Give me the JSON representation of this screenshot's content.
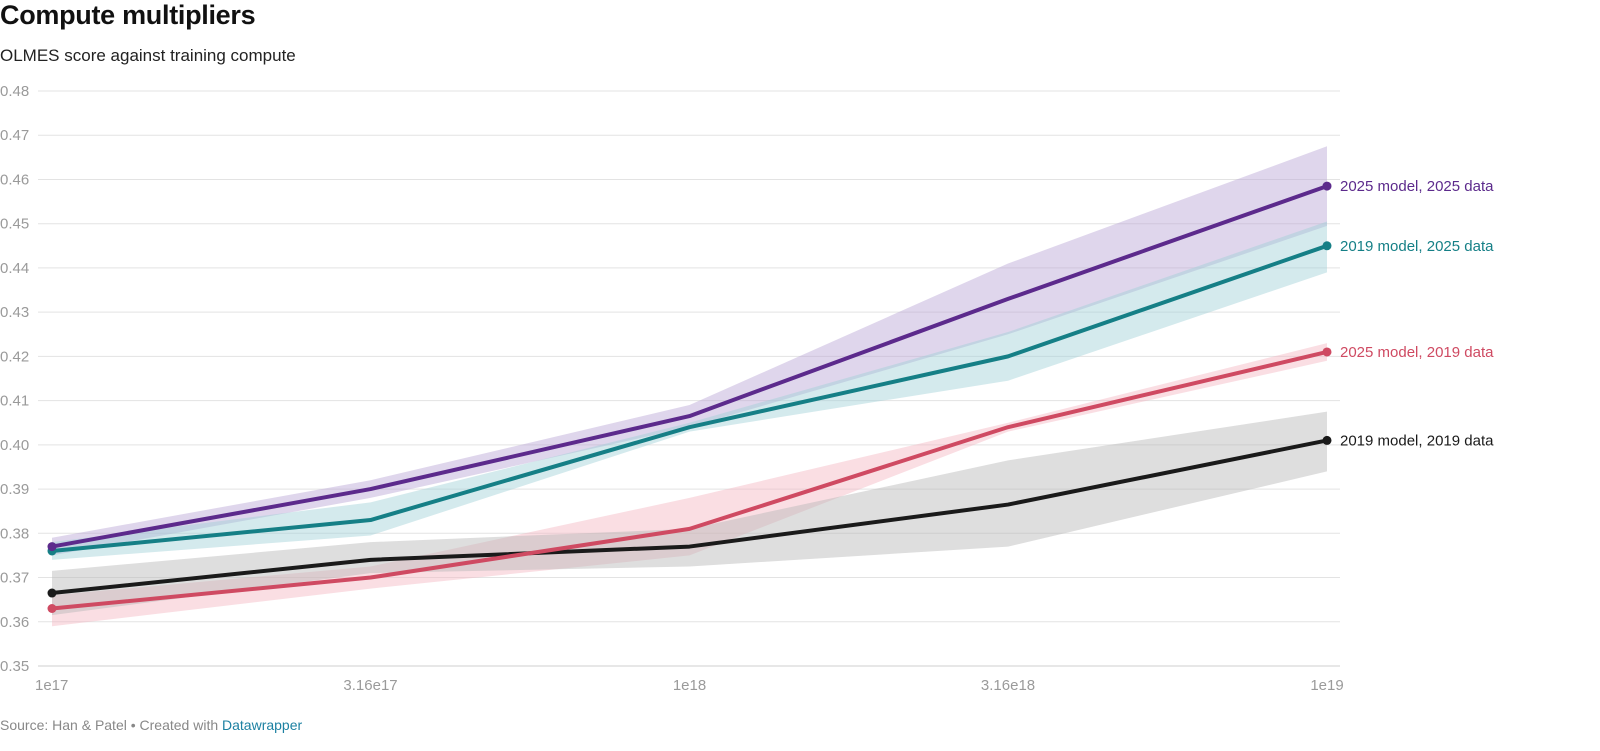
{
  "header": {
    "title": "Compute multipliers",
    "subtitle": "OLMES score against training compute"
  },
  "footer": {
    "source_text": "Source: Han & Patel • Created with ",
    "credit_link": "Datawrapper"
  },
  "colors": {
    "purple": "#5c2a8c",
    "teal": "#157f86",
    "red": "#cf4a62",
    "black": "#1a1a1a",
    "grid": "#e3e3e3",
    "ticks": "#9a9a9a",
    "link": "#1d81a2"
  },
  "chart_data": {
    "type": "line",
    "title": "Compute multipliers",
    "subtitle": "OLMES score against training compute",
    "x_scale": "log",
    "categories": [
      "1e17",
      "3.16e17",
      "1e18",
      "3.16e18",
      "1e19"
    ],
    "x": [
      1e+17,
      3.16e+17,
      1e+18,
      3.16e+18,
      1e+19
    ],
    "ylim": [
      0.35,
      0.48
    ],
    "yticks": [
      "0.48",
      "0.47",
      "0.46",
      "0.45",
      "0.44",
      "0.43",
      "0.42",
      "0.41",
      "0.40",
      "0.39",
      "0.38",
      "0.37",
      "0.36",
      "0.35"
    ],
    "ytick_values": [
      0.48,
      0.47,
      0.46,
      0.45,
      0.44,
      0.43,
      0.42,
      0.41,
      0.4,
      0.39,
      0.38,
      0.37,
      0.36,
      0.35
    ],
    "grid": true,
    "legend": "direct labels at line ends",
    "series": [
      {
        "name": "2025 model, 2025 data",
        "color": "#5c2a8c",
        "band_color": "#b8a3d4",
        "values": [
          0.377,
          0.39,
          0.4065,
          0.433,
          0.4585
        ],
        "upper": [
          0.379,
          0.392,
          0.409,
          0.441,
          0.4675
        ],
        "lower": [
          0.375,
          0.388,
          0.404,
          0.425,
          0.4495
        ]
      },
      {
        "name": "2019 model, 2025 data",
        "color": "#157f86",
        "band_color": "#9fd0d6",
        "values": [
          0.376,
          0.383,
          0.404,
          0.42,
          0.445
        ],
        "upper": [
          0.378,
          0.387,
          0.405,
          0.4255,
          0.4505
        ],
        "lower": [
          0.374,
          0.3795,
          0.403,
          0.4145,
          0.439
        ]
      },
      {
        "name": "2025 model, 2019 data",
        "color": "#cf4a62",
        "band_color": "#f5b6c0",
        "values": [
          0.363,
          0.37,
          0.381,
          0.404,
          0.421
        ],
        "upper": [
          0.366,
          0.3725,
          0.388,
          0.405,
          0.423
        ],
        "lower": [
          0.359,
          0.3675,
          0.375,
          0.403,
          0.419
        ]
      },
      {
        "name": "2019 model, 2019 data",
        "color": "#1a1a1a",
        "band_color": "#b5b5b5",
        "values": [
          0.3665,
          0.374,
          0.377,
          0.3865,
          0.401
        ],
        "upper": [
          0.3715,
          0.378,
          0.381,
          0.3965,
          0.4075
        ],
        "lower": [
          0.3615,
          0.371,
          0.3725,
          0.377,
          0.394
        ]
      }
    ]
  }
}
